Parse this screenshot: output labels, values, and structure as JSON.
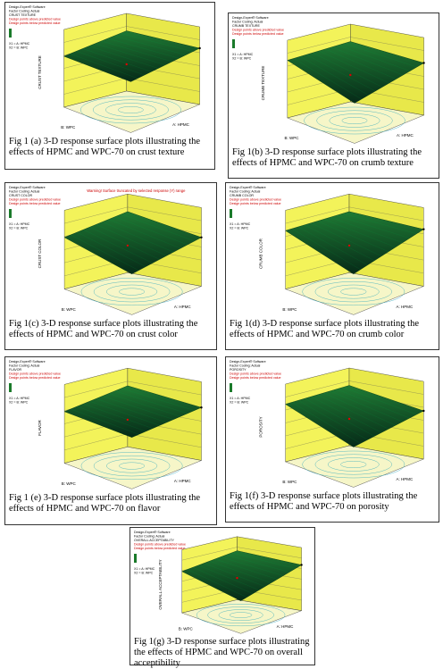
{
  "panels": [
    {
      "software": "Design-Expert® Software",
      "coding": "Factor Coding: Actual",
      "response": "CRUST TEXTURE",
      "legend_above": "Design points above predicted value",
      "legend_below": "Design points below predicted value",
      "x1": "X1 = A: HPMC",
      "x2": "X2 = B: WPC",
      "z_label": "CRUST TEXTURE",
      "x_label": "A: HPMC",
      "y_label": "B: WPC",
      "caption": "Fig 1 (a) 3-D response surface plots illustrating the effects of HPMC and WPC-70 on crust texture"
    },
    {
      "software": "Design-Expert® Software",
      "coding": "Factor Coding: Actual",
      "response": "CRUMB TEXTURE",
      "legend_above": "Design points above predicted value",
      "legend_below": "Design points below predicted value",
      "x1": "X1 = A: HPMC",
      "x2": "X2 = B: WPC",
      "z_label": "CRUMB TEXTURE",
      "x_label": "A: HPMC",
      "y_label": "B: WPC",
      "caption": "Fig 1(b) 3-D response surface plots illustrating the effects of HPMC and WPC-70 on crumb texture"
    },
    {
      "software": "Design-Expert® Software",
      "coding": "Factor Coding: Actual",
      "response": "CRUST COLOR",
      "legend_above": "Design points above predicted value",
      "legend_below": "Design points below predicted value",
      "x1": "X1 = A: HPMC",
      "x2": "X2 = B: WPC",
      "z_label": "CRUST COLOR",
      "x_label": "A: HPMC",
      "y_label": "B: WPC",
      "warning": "Warning! Surface truncated by selected response (Y) range",
      "caption": "Fig 1(c) 3-D response surface plots illustrating the effects of HPMC and WPC-70 on crust color"
    },
    {
      "software": "Design-Expert® Software",
      "coding": "Factor Coding: Actual",
      "response": "CRUMB COLOR",
      "legend_above": "Design points above predicted value",
      "legend_below": "Design points below predicted value",
      "x1": "X1 = A: HPMC",
      "x2": "X2 = B: WPC",
      "z_label": "CRUMB COLOR",
      "x_label": "A: HPMC",
      "y_label": "B: WPC",
      "caption": "Fig 1(d) 3-D response surface plots illustrating the effects of HPMC and WPC-70 on crumb color"
    },
    {
      "software": "Design-Expert® Software",
      "coding": "Factor Coding: Actual",
      "response": "FLAVOR",
      "legend_above": "Design points above predicted value",
      "legend_below": "Design points below predicted value",
      "x1": "X1 = A: HPMC",
      "x2": "X2 = B: WPC",
      "z_label": "FLAVOR",
      "x_label": "A: HPMC",
      "y_label": "B: WPC",
      "caption": "Fig 1 (e) 3-D response surface plots illustrating the effects of HPMC and WPC-70 on flavor"
    },
    {
      "software": "Design-Expert® Software",
      "coding": "Factor Coding: Actual",
      "response": "POROSITY",
      "legend_above": "Design points above predicted value",
      "legend_below": "Design points below predicted value",
      "x1": "X1 = A: HPMC",
      "x2": "X2 = B: WPC",
      "z_label": "POROSITY",
      "x_label": "A: HPMC",
      "y_label": "B: WPC",
      "caption": "Fig 1(f) 3-D response surface plots illustrating the effects of HPMC and WPC-70 on porosity"
    },
    {
      "software": "Design-Expert® Software",
      "coding": "Factor Coding: Actual",
      "response": "OVERALL ACCEPTABILITY",
      "legend_above": "Design points above predicted value",
      "legend_below": "Design points below predicted value",
      "x1": "X1 = A: HPMC",
      "x2": "X2 = B: WPC",
      "z_label": "OVERALL ACCEPTABILITY",
      "x_label": "A: HPMC",
      "y_label": "B: WPC",
      "caption": "Fig 1(g) 3-D response surface plots illustrating the effects of HPMC and WPC-70 on overall acceptibility"
    }
  ]
}
